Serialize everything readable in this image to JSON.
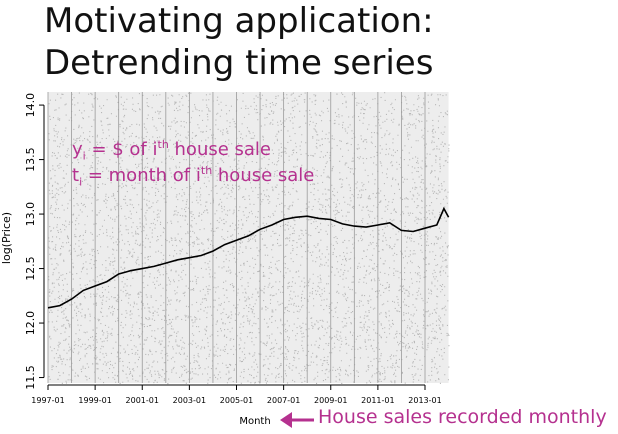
{
  "slide": {
    "title_line1": "Motivating application:",
    "title_line2": "Detrending time series",
    "annotation": {
      "y_var": "y",
      "y_sub": "i",
      "y_text_a": " = $ of i",
      "y_sup": "th",
      "y_text_b": " house sale",
      "t_var": "t",
      "t_sub": "i",
      "t_text_a": " = month of i",
      "t_sup": "th",
      "t_text_b": " house sale"
    },
    "caption": "House sales recorded monthly",
    "accent_color": "#b5318f"
  },
  "chart_data": {
    "type": "scatter",
    "xlabel": "Month",
    "ylabel": "log(Price)",
    "xlim": [
      1997.0,
      2014.4
    ],
    "ylim": [
      11.45,
      14.12
    ],
    "x_ticks": [
      "1997-01",
      "1999-01",
      "2001-01",
      "2003-01",
      "2005-01",
      "2007-01",
      "2009-01",
      "2011-01",
      "2013-01"
    ],
    "x_tick_values": [
      1997,
      1999,
      2001,
      2003,
      2005,
      2007,
      2009,
      2011,
      2013
    ],
    "y_ticks": [
      "11.5",
      "12.0",
      "12.5",
      "13.0",
      "13.5",
      "14.0"
    ],
    "y_tick_values": [
      11.5,
      12.0,
      12.5,
      13.0,
      13.5,
      14.0
    ],
    "vertical_lines": [
      1997,
      1998,
      1999,
      2000,
      2001,
      2002,
      2003,
      2004,
      2005,
      2006,
      2007,
      2008,
      2009,
      2010,
      2011,
      2012,
      2013
    ],
    "grid": false,
    "trend": {
      "x": [
        1997.0,
        1997.5,
        1998.0,
        1998.5,
        1999.0,
        1999.5,
        2000.0,
        2000.5,
        2001.0,
        2001.5,
        2002.0,
        2002.5,
        2003.0,
        2003.5,
        2004.0,
        2004.5,
        2005.0,
        2005.5,
        2006.0,
        2006.5,
        2007.0,
        2007.5,
        2008.0,
        2008.5,
        2009.0,
        2009.5,
        2010.0,
        2010.5,
        2011.0,
        2011.5,
        2012.0,
        2012.5,
        2013.0,
        2013.5,
        2013.8,
        2014.0
      ],
      "y": [
        12.14,
        12.16,
        12.22,
        12.3,
        12.34,
        12.38,
        12.45,
        12.48,
        12.5,
        12.52,
        12.55,
        12.58,
        12.6,
        12.62,
        12.66,
        12.72,
        12.76,
        12.8,
        12.86,
        12.9,
        12.95,
        12.97,
        12.98,
        12.96,
        12.95,
        12.91,
        12.89,
        12.88,
        12.9,
        12.92,
        12.85,
        12.84,
        12.87,
        12.9,
        13.05,
        12.97
      ]
    },
    "scatter_density": {
      "x_range": [
        1997.0,
        2014.0
      ],
      "y_range": [
        11.45,
        14.12
      ],
      "color": "#b8b8b8"
    },
    "trend_color": "#000000"
  }
}
